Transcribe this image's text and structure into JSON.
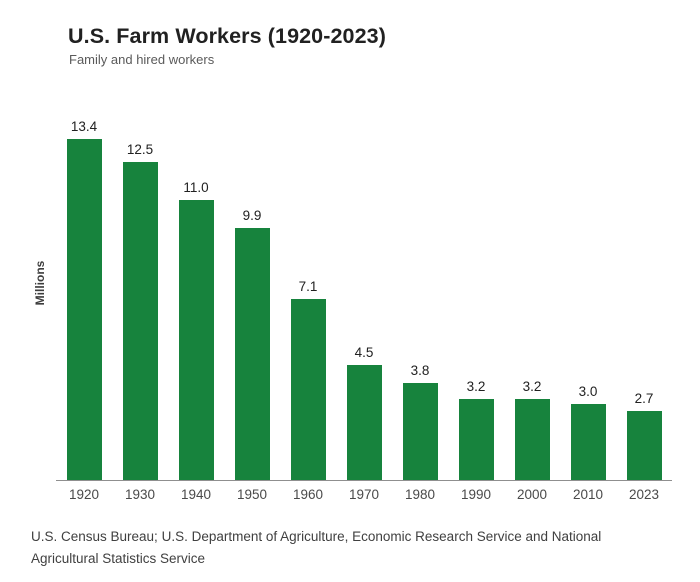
{
  "header": {
    "title": "U.S. Farm Workers (1920-2023)",
    "subtitle": "Family and hired workers"
  },
  "chart_data": {
    "type": "bar",
    "title": "U.S. Farm Workers (1920-2023)",
    "subtitle": "Family and hired workers",
    "xlabel": "",
    "ylabel": "Millions",
    "categories": [
      "1920",
      "1930",
      "1940",
      "1950",
      "1960",
      "1970",
      "1980",
      "1990",
      "2000",
      "2010",
      "2023"
    ],
    "values": [
      13.4,
      12.5,
      11.0,
      9.9,
      7.1,
      4.5,
      3.8,
      3.2,
      3.2,
      3.0,
      2.7
    ],
    "value_labels": [
      "13.4",
      "12.5",
      "11.0",
      "9.9",
      "7.1",
      "4.5",
      "3.8",
      "3.2",
      "3.2",
      "3.0",
      "2.7"
    ],
    "ylim": [
      0,
      14.5
    ],
    "grid": false,
    "legend": "none",
    "bar_color": "#17833d",
    "axis_line_color": "#8f8f8f"
  },
  "footer": {
    "source_line1": "U.S. Census Bureau; U.S. Department of Agriculture, Economic Research Service and National",
    "source_line2": "Agricultural Statistics Service"
  }
}
